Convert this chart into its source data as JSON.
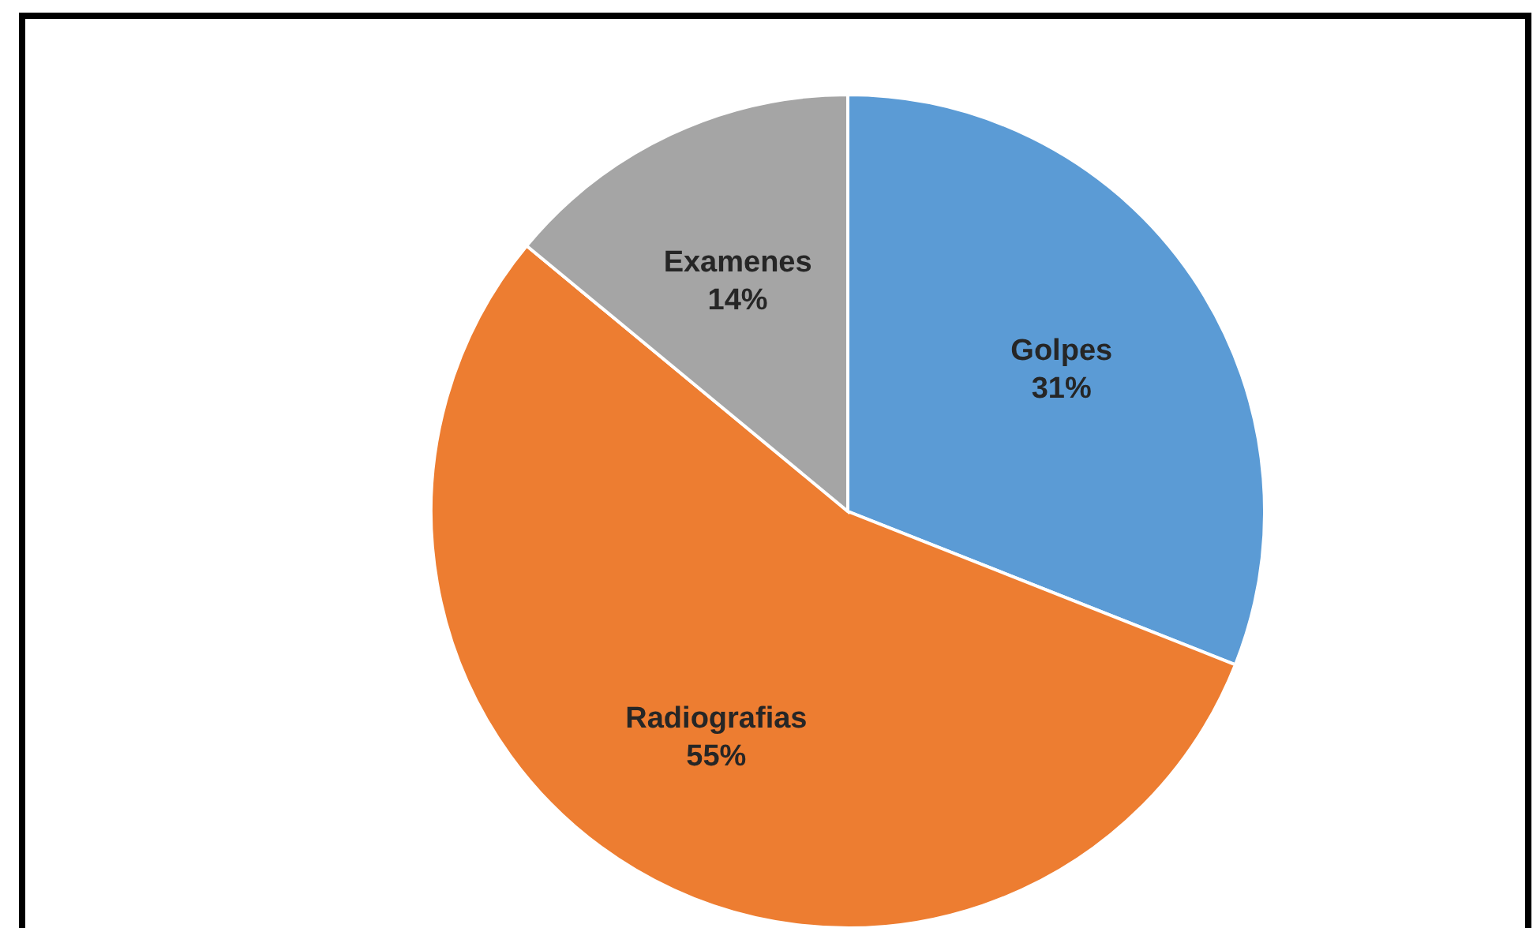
{
  "chart_data": {
    "type": "pie",
    "categories": [
      "Golpes",
      "Radiografias",
      "Examenes"
    ],
    "values": [
      31,
      55,
      14
    ],
    "colors": [
      "#5b9bd5",
      "#ed7d31",
      "#a5a5a5"
    ],
    "value_labels": [
      "31%",
      "55%",
      "14%"
    ]
  }
}
